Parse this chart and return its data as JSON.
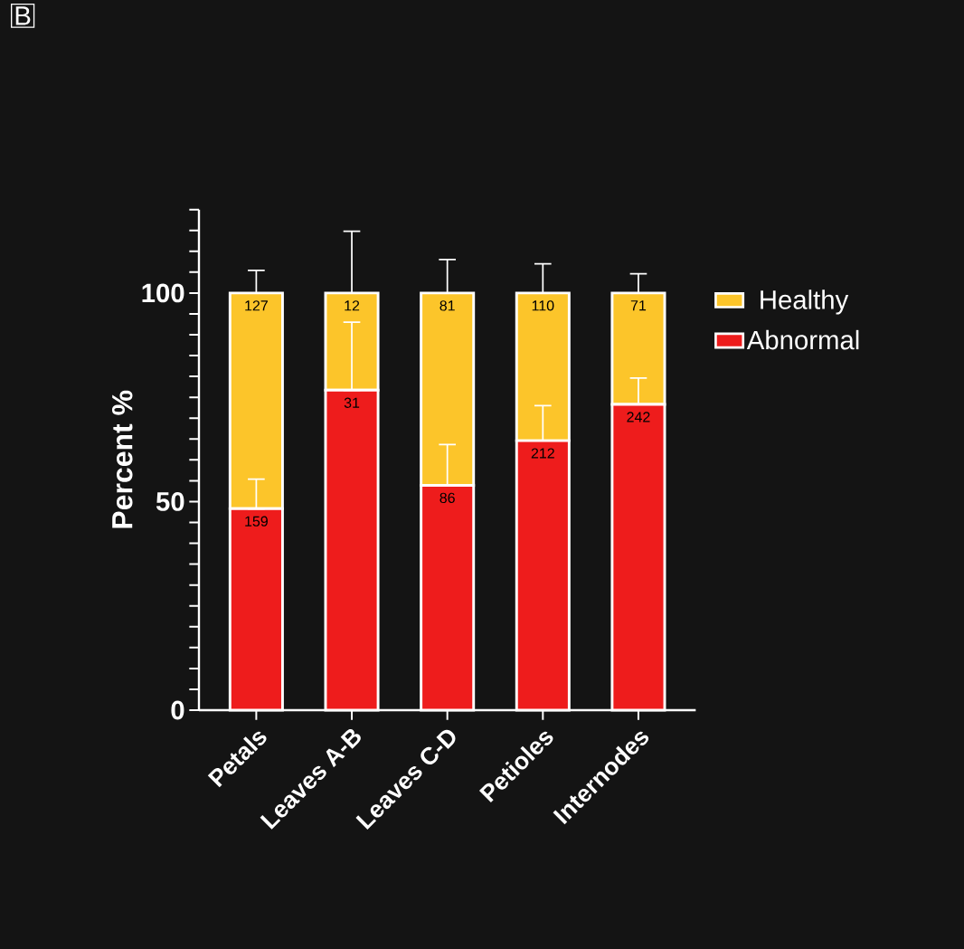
{
  "chart_data": {
    "type": "bar",
    "stacked": true,
    "ylabel": "Percent %",
    "annotations": [
      "B",
      {
        "text": "159",
        "x": "Petals",
        "y": 48.3
      },
      {
        "text": "31",
        "x": "Leaves A-B",
        "y": 76.7
      },
      {
        "text": "86",
        "x": "Leaves C-D",
        "y": 53.9
      },
      {
        "text": "212",
        "x": "Petioles",
        "y": 64.6
      },
      {
        "text": "242",
        "x": "Internodes",
        "y": 73.3
      },
      {
        "text": "127",
        "x": "Petals",
        "y": 100
      },
      {
        "text": "12",
        "x": "Leaves A-B",
        "y": 100
      },
      {
        "text": "81",
        "x": "Leaves C-D",
        "y": 100
      },
      {
        "text": "110",
        "x": "Petioles",
        "y": 100
      },
      {
        "text": "71",
        "x": "Internodes",
        "y": 100
      }
    ],
    "categories": [
      "Petals",
      "Leaves A-B",
      "Leaves C-D",
      "Petioles",
      "Internodes"
    ],
    "series": [
      {
        "name": "Abnormal",
        "color": "#ee1c1c",
        "values": [
          48.3,
          76.7,
          53.9,
          64.6,
          73.3
        ],
        "errors": [
          [
            48.3,
            55.4
          ],
          [
            76.7,
            93
          ],
          [
            53.9,
            63.7
          ],
          [
            64.6,
            73
          ],
          [
            73.3,
            79.6
          ]
        ]
      },
      {
        "name": "Healthy",
        "color": "#fcc52a",
        "values": [
          51.7,
          23.3,
          46.1,
          35.4,
          26.7
        ],
        "errors": [
          [
            100,
            105.4
          ],
          [
            100,
            114.8
          ],
          [
            100,
            108
          ],
          [
            100,
            107
          ],
          [
            100,
            104.6
          ]
        ]
      }
    ],
    "ylim": [
      0,
      120
    ],
    "yticks": [
      0,
      {
        "value": 5,
        "label": null
      },
      {
        "value": 10,
        "label": null
      },
      {
        "value": 15,
        "label": null
      },
      {
        "value": 20,
        "label": null
      },
      {
        "value": 25,
        "label": null
      },
      {
        "value": 30,
        "label": null
      },
      {
        "value": 35,
        "label": null
      },
      {
        "value": 40,
        "label": null
      },
      {
        "value": 45,
        "label": null
      },
      50,
      {
        "value": 55,
        "label": null
      },
      {
        "value": 60,
        "label": null
      },
      {
        "value": 65,
        "label": null
      },
      {
        "value": 70,
        "label": null
      },
      {
        "value": 75,
        "label": null
      },
      {
        "value": 80,
        "label": null
      },
      {
        "value": 85,
        "label": null
      },
      {
        "value": 90,
        "label": null
      },
      {
        "value": 95,
        "label": null
      },
      100,
      {
        "value": 105,
        "label": null
      },
      {
        "value": 110,
        "label": null
      },
      {
        "value": 115,
        "label": null
      },
      {
        "value": 120,
        "label": null
      }
    ],
    "legend": "right"
  }
}
